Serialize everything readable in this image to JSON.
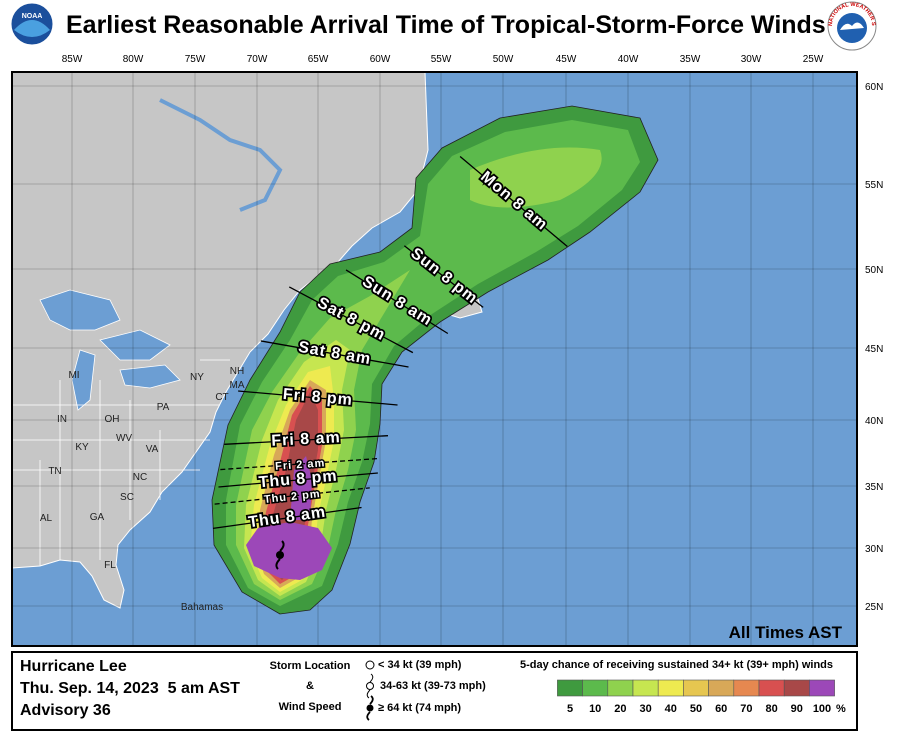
{
  "header": {
    "title": "Earliest Reasonable Arrival Time of Tropical-Storm-Force Winds",
    "noaa_logo": "NOAA",
    "nws_logo": "NATIONAL WEATHER SERVICE"
  },
  "map": {
    "longitude_labels": [
      "85W",
      "80W",
      "75W",
      "70W",
      "65W",
      "60W",
      "55W",
      "50W",
      "45W",
      "40W",
      "35W",
      "30W",
      "25W"
    ],
    "latitude_labels": [
      "60N",
      "55N",
      "50N",
      "45N",
      "40N",
      "35N",
      "30N",
      "25N"
    ],
    "place_labels": [
      "MI",
      "NY",
      "PA",
      "IN",
      "OH",
      "WV",
      "VA",
      "KY",
      "TN",
      "NC",
      "SC",
      "GA",
      "AL",
      "FL",
      "NH",
      "MA",
      "CT",
      "Bahamas"
    ],
    "arrival_times": [
      "Mon 8 am",
      "Sun 8 pm",
      "Sun 8 am",
      "Sat 8 pm",
      "Sat 8 am",
      "Fri 8 pm",
      "Fri 8 am",
      "Fri 2 am",
      "Thu 8 pm",
      "Thu 2 pm",
      "Thu 8 am"
    ],
    "note": "All Times AST"
  },
  "info": {
    "storm": "Hurricane Lee",
    "time": "Thu. Sep. 14, 2023  5 am AST",
    "advisory": "Advisory 36"
  },
  "symbols": {
    "title_1": "Storm Location",
    "title_2": "&",
    "title_3": "Wind Speed",
    "items": [
      "< 34 kt (39 mph)",
      "34-63 kt (39-73 mph)",
      "≥ 64 kt (74 mph)"
    ]
  },
  "legend": {
    "title": "5-day chance of receiving sustained 34+ kt (39+ mph) winds",
    "labels": [
      5,
      10,
      20,
      30,
      40,
      50,
      60,
      70,
      80,
      90,
      100
    ],
    "unit": "%",
    "colors": [
      "#3f9a3f",
      "#5cba4c",
      "#8fd24e",
      "#c6e650",
      "#eeea50",
      "#e6c650",
      "#d8a858",
      "#e68850",
      "#d85050",
      "#a84848",
      "#9c48b8"
    ]
  }
}
